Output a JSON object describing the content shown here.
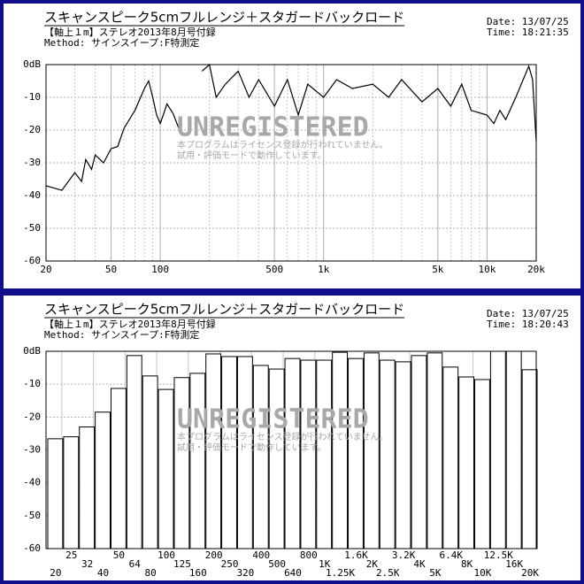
{
  "chart_data": [
    {
      "type": "line",
      "title": "スキャンスピーク5cmフルレンジ＋スタガードバックロード",
      "subtitle": "【軸上１m】ステレオ2013年8月号付録",
      "method": "Method: サインスイープ:F特測定",
      "date": "Date: 13/07/25",
      "time": "Time: 18:21:35",
      "watermark": "UNREGISTERED",
      "watermark_note": [
        "本プログラムはライセンス登録が行われていません。",
        "試用・評価モードで動作しています。"
      ],
      "x": [
        20,
        25,
        30,
        33,
        35,
        38,
        40,
        45,
        50,
        55,
        60,
        70,
        80,
        85,
        90,
        95,
        100,
        105,
        110,
        120,
        130,
        150,
        180,
        200,
        220,
        250,
        300,
        350,
        400,
        500,
        600,
        700,
        800,
        1000,
        1200,
        1500,
        2000,
        2500,
        3000,
        4000,
        5000,
        6000,
        7000,
        8000,
        10000,
        11000,
        12000,
        13000,
        15000,
        18000,
        19000,
        20000
      ],
      "values": [
        -37,
        -38.4,
        -33,
        -35.7,
        -29,
        -32,
        -27.6,
        -30,
        -25.7,
        -25,
        -19.5,
        -14,
        -7.3,
        -5,
        -10,
        -15.4,
        -18,
        -15,
        -12,
        -15,
        -19.5,
        null,
        -2,
        0,
        -10,
        -6,
        -2,
        -10,
        -4.6,
        -12.7,
        -4.6,
        -15.4,
        -6,
        -10,
        -4.6,
        -7.3,
        -6,
        -10,
        -4.6,
        -11.4,
        -7.3,
        -12.7,
        -6,
        -14,
        -15.4,
        -18,
        -14,
        -16.8,
        -10,
        -0.5,
        -4.6,
        -23.5
      ],
      "color": "#000000",
      "log_x": true,
      "grid": true,
      "xlim": [
        20,
        20000
      ],
      "xticks": [
        20,
        50,
        100,
        500,
        {
          "value": 1000,
          "label": "1k"
        },
        {
          "value": 5000,
          "label": "5k"
        },
        {
          "value": 10000,
          "label": "10k"
        },
        {
          "value": 20000,
          "label": "20k"
        }
      ],
      "ylim": [
        -60,
        0
      ],
      "yticks": [
        {
          "value": 0,
          "label": "0dB"
        },
        -10,
        -20,
        -30,
        -40,
        -50,
        -60
      ]
    },
    {
      "type": "bar",
      "title": "スキャンスピーク5cmフルレンジ＋スタガードバックロード",
      "subtitle": "【軸上１m】ステレオ2013年8月号付録",
      "method": "Method: サインスイープ:F特測定",
      "date": "Date: 13/07/25",
      "time": "Time: 18:20:43",
      "watermark": "UNREGISTERED",
      "watermark_note": [
        "本プログラムはライセンス登録が行われていません。",
        "試用・評価モードで動作しています。"
      ],
      "categories": [
        "20",
        "25",
        "32",
        "40",
        "50",
        "64",
        "80",
        "100",
        "125",
        "160",
        "200",
        "250",
        "320",
        "400",
        "500",
        "640",
        "800",
        "1K",
        "1.25K",
        "1.6K",
        "2K",
        "2.5K",
        "3.2K",
        "4K",
        "5K",
        "6.4K",
        "8K",
        "10K",
        "12.5K",
        "16K",
        "20K"
      ],
      "values": [
        -26.6,
        -26,
        -23,
        -18.5,
        -11.3,
        -1.3,
        -7.5,
        -11.6,
        -8,
        -6.7,
        -0.8,
        -1.6,
        -1.6,
        -4.3,
        -5.4,
        -2.2,
        -2.7,
        -2.7,
        -0.3,
        -2.2,
        -0.5,
        -2.7,
        -3.2,
        -1.3,
        -0.5,
        -4.8,
        -7.8,
        -8.6,
        0,
        0,
        -5.6
      ],
      "color": "#ffffff",
      "grid": true,
      "ylim": [
        -60,
        0
      ],
      "yticks": [
        {
          "value": 0,
          "label": "0dB"
        },
        -10,
        -20,
        -30,
        -40,
        -50,
        -60
      ]
    }
  ]
}
